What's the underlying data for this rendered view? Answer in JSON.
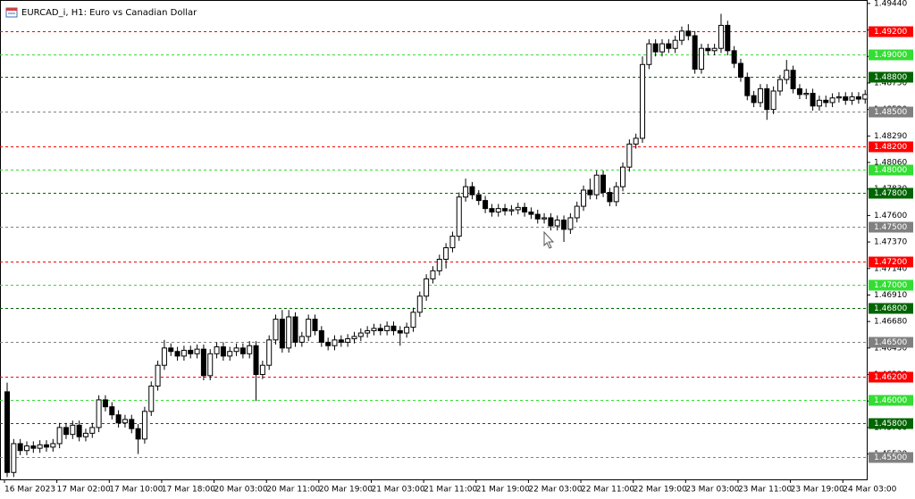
{
  "chart_data": {
    "type": "candlestick",
    "title": "EURCAD_i, H1:  Euro vs Canadian Dollar",
    "categories": [
      "16 Mar 2023",
      null,
      null,
      null,
      null,
      null,
      null,
      null,
      "17 Mar 02:00",
      null,
      null,
      null,
      null,
      null,
      null,
      null,
      "17 Mar 10:00",
      null,
      null,
      null,
      null,
      null,
      null,
      null,
      "17 Mar 18:00",
      null,
      null,
      null,
      null,
      null,
      null,
      null,
      "20 Mar 03:00",
      null,
      null,
      null,
      null,
      null,
      null,
      null,
      "20 Mar 11:00",
      null,
      null,
      null,
      null,
      null,
      null,
      null,
      "20 Mar 19:00",
      null,
      null,
      null,
      null,
      null,
      null,
      null,
      "21 Mar 03:00",
      null,
      null,
      null,
      null,
      null,
      null,
      null,
      "21 Mar 11:00",
      null,
      null,
      null,
      null,
      null,
      null,
      null,
      "21 Mar 19:00",
      null,
      null,
      null,
      null,
      null,
      null,
      null,
      "22 Mar 03:00",
      null,
      null,
      null,
      null,
      null,
      null,
      null,
      "22 Mar 11:00",
      null,
      null,
      null,
      null,
      null,
      null,
      null,
      "22 Mar 19:00",
      null,
      null,
      null,
      null,
      null,
      null,
      null,
      "23 Mar 03:00",
      null,
      null,
      null,
      null,
      null,
      null,
      null,
      "23 Mar 11:00",
      null,
      null,
      null,
      null,
      null,
      null,
      null,
      "23 Mar 19:00",
      null,
      null,
      null,
      null,
      null,
      null,
      null,
      "24 Mar 03:00",
      null,
      null,
      null
    ],
    "open": [
      1.4607,
      1.4537,
      1.4562,
      1.4556,
      1.456,
      1.4558,
      1.4561,
      1.4559,
      1.4562,
      1.4576,
      1.457,
      1.4578,
      1.4568,
      1.4571,
      1.4576,
      1.46,
      1.4594,
      1.4587,
      1.458,
      1.4583,
      1.4575,
      1.4566,
      1.459,
      1.4612,
      1.463,
      1.4645,
      1.4642,
      1.4638,
      1.4643,
      1.464,
      1.4644,
      1.4621,
      1.464,
      1.4646,
      1.4638,
      1.4642,
      1.4645,
      1.464,
      1.4647,
      1.4622,
      1.463,
      1.4652,
      1.467,
      1.4645,
      1.4672,
      1.465,
      1.4655,
      1.467,
      1.466,
      1.465,
      1.4647,
      1.4652,
      1.465,
      1.4653,
      1.4655,
      1.4658,
      1.466,
      1.4662,
      1.466,
      1.4664,
      1.466,
      1.4658,
      1.4663,
      1.4676,
      1.469,
      1.4705,
      1.4712,
      1.4722,
      1.4732,
      1.4742,
      1.4776,
      1.4785,
      1.4778,
      1.4773,
      1.4766,
      1.4763,
      1.4766,
      1.4764,
      1.4765,
      1.4767,
      1.4763,
      1.4761,
      1.4757,
      1.4758,
      1.4751,
      1.4756,
      1.4748,
      1.4758,
      1.4768,
      1.4782,
      1.4778,
      1.4795,
      1.478,
      1.4772,
      1.4785,
      1.4802,
      1.4822,
      1.4827,
      1.4891,
      1.4909,
      1.4902,
      1.4909,
      1.4905,
      1.4912,
      1.492,
      1.4916,
      1.4887,
      1.4905,
      1.4903,
      1.4905,
      1.4925,
      1.4903,
      1.4892,
      1.488,
      1.4864,
      1.4858,
      1.487,
      1.4852,
      1.4868,
      1.4878,
      1.4886,
      1.487,
      1.4865,
      1.4866,
      1.4855,
      1.486,
      1.4858,
      1.4862,
      1.4863,
      1.486,
      1.4863,
      1.4861
    ],
    "high": [
      1.4615,
      1.4566,
      1.4566,
      1.4564,
      1.4564,
      1.4565,
      1.4565,
      1.4566,
      1.458,
      1.458,
      1.4582,
      1.4582,
      1.4575,
      1.458,
      1.4604,
      1.4604,
      1.4598,
      1.4591,
      1.4587,
      1.4587,
      1.4579,
      1.4594,
      1.4616,
      1.4634,
      1.4652,
      1.4649,
      1.4646,
      1.4647,
      1.4647,
      1.4648,
      1.4648,
      1.4644,
      1.465,
      1.465,
      1.4646,
      1.4649,
      1.4649,
      1.4651,
      1.4651,
      1.4634,
      1.4656,
      1.4674,
      1.4678,
      1.4678,
      1.4676,
      1.4659,
      1.4674,
      1.4674,
      1.4664,
      1.4654,
      1.4656,
      1.4656,
      1.4657,
      1.4659,
      1.4662,
      1.4664,
      1.4666,
      1.4666,
      1.4668,
      1.4668,
      1.4664,
      1.4667,
      1.468,
      1.4694,
      1.4709,
      1.4716,
      1.4726,
      1.4736,
      1.4746,
      1.478,
      1.4792,
      1.4789,
      1.4782,
      1.4777,
      1.477,
      1.477,
      1.477,
      1.4769,
      1.4771,
      1.4771,
      1.4767,
      1.4765,
      1.4762,
      1.4762,
      1.476,
      1.476,
      1.4762,
      1.4772,
      1.4786,
      1.4792,
      1.4799,
      1.4799,
      1.4784,
      1.4789,
      1.4806,
      1.4826,
      1.4831,
      1.4898,
      1.4913,
      1.4913,
      1.4913,
      1.4913,
      1.4916,
      1.4924,
      1.4926,
      1.492,
      1.4909,
      1.4909,
      1.4909,
      1.4935,
      1.4929,
      1.4907,
      1.4896,
      1.4884,
      1.4868,
      1.4874,
      1.4874,
      1.4872,
      1.4882,
      1.4895,
      1.489,
      1.4874,
      1.487,
      1.487,
      1.4864,
      1.4864,
      1.4866,
      1.4867,
      1.4867,
      1.4867,
      1.4867,
      1.4869
    ],
    "low": [
      1.4533,
      1.4533,
      1.4552,
      1.4552,
      1.4554,
      1.4554,
      1.4555,
      1.4555,
      1.4558,
      1.4566,
      1.4566,
      1.4564,
      1.4564,
      1.4567,
      1.4572,
      1.459,
      1.4583,
      1.4576,
      1.4576,
      1.4571,
      1.4553,
      1.4562,
      1.4586,
      1.4608,
      1.4626,
      1.4638,
      1.4634,
      1.4634,
      1.4636,
      1.4636,
      1.4617,
      1.4617,
      1.4636,
      1.4634,
      1.4634,
      1.4638,
      1.4636,
      1.4636,
      1.4599,
      1.4618,
      1.4626,
      1.4648,
      1.4641,
      1.4641,
      1.4646,
      1.4646,
      1.4651,
      1.4656,
      1.4646,
      1.4643,
      1.4643,
      1.4646,
      1.4646,
      1.4649,
      1.4651,
      1.4654,
      1.4656,
      1.4656,
      1.4656,
      1.4656,
      1.4647,
      1.4654,
      1.4659,
      1.4672,
      1.4686,
      1.4701,
      1.4708,
      1.4714,
      1.4728,
      1.4738,
      1.4772,
      1.4774,
      1.4769,
      1.4762,
      1.4759,
      1.4759,
      1.476,
      1.476,
      1.4761,
      1.4759,
      1.4757,
      1.4753,
      1.4753,
      1.4747,
      1.4747,
      1.4737,
      1.4744,
      1.4754,
      1.4764,
      1.4774,
      1.4774,
      1.4776,
      1.4768,
      1.4768,
      1.4781,
      1.4798,
      1.4818,
      1.4823,
      1.4887,
      1.4898,
      1.4898,
      1.4901,
      1.4901,
      1.4908,
      1.4912,
      1.4883,
      1.4883,
      1.4899,
      1.4899,
      1.4901,
      1.4899,
      1.4888,
      1.4876,
      1.486,
      1.4854,
      1.4854,
      1.4843,
      1.4848,
      1.4864,
      1.4874,
      1.4866,
      1.4861,
      1.4861,
      1.4851,
      1.4851,
      1.4854,
      1.4854,
      1.4858,
      1.4856,
      1.4856,
      1.4857,
      1.4857
    ],
    "close": [
      1.4537,
      1.4562,
      1.4556,
      1.456,
      1.4558,
      1.4561,
      1.4559,
      1.4562,
      1.4576,
      1.457,
      1.4578,
      1.4568,
      1.4571,
      1.4576,
      1.46,
      1.4594,
      1.4587,
      1.458,
      1.4583,
      1.4575,
      1.4566,
      1.459,
      1.4612,
      1.463,
      1.4645,
      1.4642,
      1.4638,
      1.4643,
      1.464,
      1.4644,
      1.4621,
      1.464,
      1.4646,
      1.4638,
      1.4642,
      1.4645,
      1.464,
      1.4647,
      1.4622,
      1.463,
      1.4652,
      1.467,
      1.4645,
      1.4672,
      1.465,
      1.4655,
      1.467,
      1.466,
      1.465,
      1.4647,
      1.4652,
      1.465,
      1.4653,
      1.4655,
      1.4658,
      1.466,
      1.4662,
      1.466,
      1.4664,
      1.466,
      1.4658,
      1.4663,
      1.4676,
      1.469,
      1.4705,
      1.4712,
      1.4722,
      1.4732,
      1.4742,
      1.4776,
      1.4785,
      1.4778,
      1.4773,
      1.4766,
      1.4763,
      1.4766,
      1.4764,
      1.4765,
      1.4767,
      1.4763,
      1.4761,
      1.4757,
      1.4758,
      1.4751,
      1.4756,
      1.4748,
      1.4758,
      1.4768,
      1.4782,
      1.4778,
      1.4795,
      1.478,
      1.4772,
      1.4785,
      1.4802,
      1.4822,
      1.4827,
      1.4891,
      1.4909,
      1.4902,
      1.4909,
      1.4905,
      1.4912,
      1.492,
      1.4916,
      1.4887,
      1.4905,
      1.4903,
      1.4905,
      1.4925,
      1.4903,
      1.4892,
      1.488,
      1.4864,
      1.4858,
      1.487,
      1.4852,
      1.4868,
      1.4878,
      1.4886,
      1.487,
      1.4865,
      1.4866,
      1.4855,
      1.486,
      1.4858,
      1.4862,
      1.4863,
      1.486,
      1.4863,
      1.4861,
      1.4865
    ],
    "bull_color": "#ffffff",
    "bear_color": "#000000",
    "ylim": [
      1.4531,
      1.4947
    ],
    "yticks": [
      {
        "value": 1.4553,
        "label": "1.45530"
      },
      {
        "value": 1.4576,
        "label": "1.45760"
      },
      {
        "value": 1.4599,
        "label": "1.45990"
      },
      {
        "value": 1.4622,
        "label": "1.46220"
      },
      {
        "value": 1.4645,
        "label": "1.46450"
      },
      {
        "value": 1.4668,
        "label": "1.46680"
      },
      {
        "value": 1.4691,
        "label": "1.46910"
      },
      {
        "value": 1.4714,
        "label": "1.47140"
      },
      {
        "value": 1.4737,
        "label": "1.47370"
      },
      {
        "value": 1.476,
        "label": "1.47600"
      },
      {
        "value": 1.4783,
        "label": "1.47830"
      },
      {
        "value": 1.4806,
        "label": "1.48060"
      },
      {
        "value": 1.4829,
        "label": "1.48290"
      },
      {
        "value": 1.4852,
        "label": "1.48520"
      },
      {
        "value": 1.4875,
        "label": "1.48750"
      },
      {
        "value": 1.4898,
        "label": "1.48980"
      },
      {
        "value": 1.4921,
        "label": "1.49210"
      },
      {
        "value": 1.4944,
        "label": "1.49440"
      }
    ],
    "levels": [
      {
        "value": 1.492,
        "label": "1.49200",
        "color": "#ff0000"
      },
      {
        "value": 1.49,
        "label": "1.49000",
        "color": "#33dd33"
      },
      {
        "value": 1.488,
        "label": "1.48800",
        "color": "#006400"
      },
      {
        "value": 1.485,
        "label": "1.48500",
        "color": "#808080"
      },
      {
        "value": 1.482,
        "label": "1.48200",
        "color": "#ff0000"
      },
      {
        "value": 1.48,
        "label": "1.48000",
        "color": "#33dd33"
      },
      {
        "value": 1.478,
        "label": "1.47800",
        "color": "#006400"
      },
      {
        "value": 1.475,
        "label": "1.47500",
        "color": "#808080"
      },
      {
        "value": 1.472,
        "label": "1.47200",
        "color": "#ff0000"
      },
      {
        "value": 1.47,
        "label": "1.47000",
        "color": "#33dd33"
      },
      {
        "value": 1.468,
        "label": "1.46800",
        "color": "#006400"
      },
      {
        "value": 1.465,
        "label": "1.46500",
        "color": "#808080"
      },
      {
        "value": 1.462,
        "label": "1.46200",
        "color": "#ff0000"
      },
      {
        "value": 1.46,
        "label": "1.46000",
        "color": "#33dd33"
      },
      {
        "value": 1.458,
        "label": "1.45800",
        "color": "#006400"
      },
      {
        "value": 1.455,
        "label": "1.45500",
        "color": "#808080"
      }
    ]
  }
}
